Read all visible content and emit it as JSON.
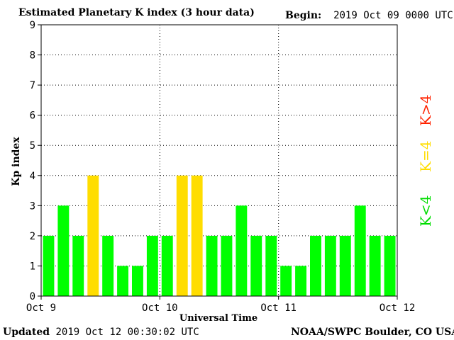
{
  "header": {
    "title": "Estimated Planetary K index (3 hour data)",
    "begin_label": "Begin:",
    "begin_value": "2019 Oct 09 0000 UTC"
  },
  "footer": {
    "updated_label": "Updated",
    "updated_value": "2019 Oct 12 00:30:02 UTC",
    "credit": "NOAA/SWPC Boulder, CO USA"
  },
  "legend": {
    "gt4": "K>4",
    "eq4": "K=4",
    "lt4": "K<4"
  },
  "colors": {
    "lt4": "#00ff00",
    "eq4": "#ffdd00",
    "gt4": "#ff2200"
  },
  "chart_data": {
    "type": "bar",
    "title": "Estimated Planetary K index (3 hour data)",
    "xlabel": "Universal Time",
    "ylabel": "Kp index",
    "ylim": [
      0,
      9
    ],
    "yticks": [
      0,
      1,
      2,
      3,
      4,
      5,
      6,
      7,
      8,
      9
    ],
    "xticks": [
      "Oct 9",
      "Oct 10",
      "Oct 11",
      "Oct 12"
    ],
    "grid": true,
    "interval_hours": 3,
    "values": [
      2,
      3,
      2,
      4,
      2,
      1,
      1,
      2,
      2,
      4,
      4,
      2,
      2,
      3,
      2,
      2,
      1,
      1,
      2,
      2,
      2,
      3,
      2,
      2
    ]
  }
}
